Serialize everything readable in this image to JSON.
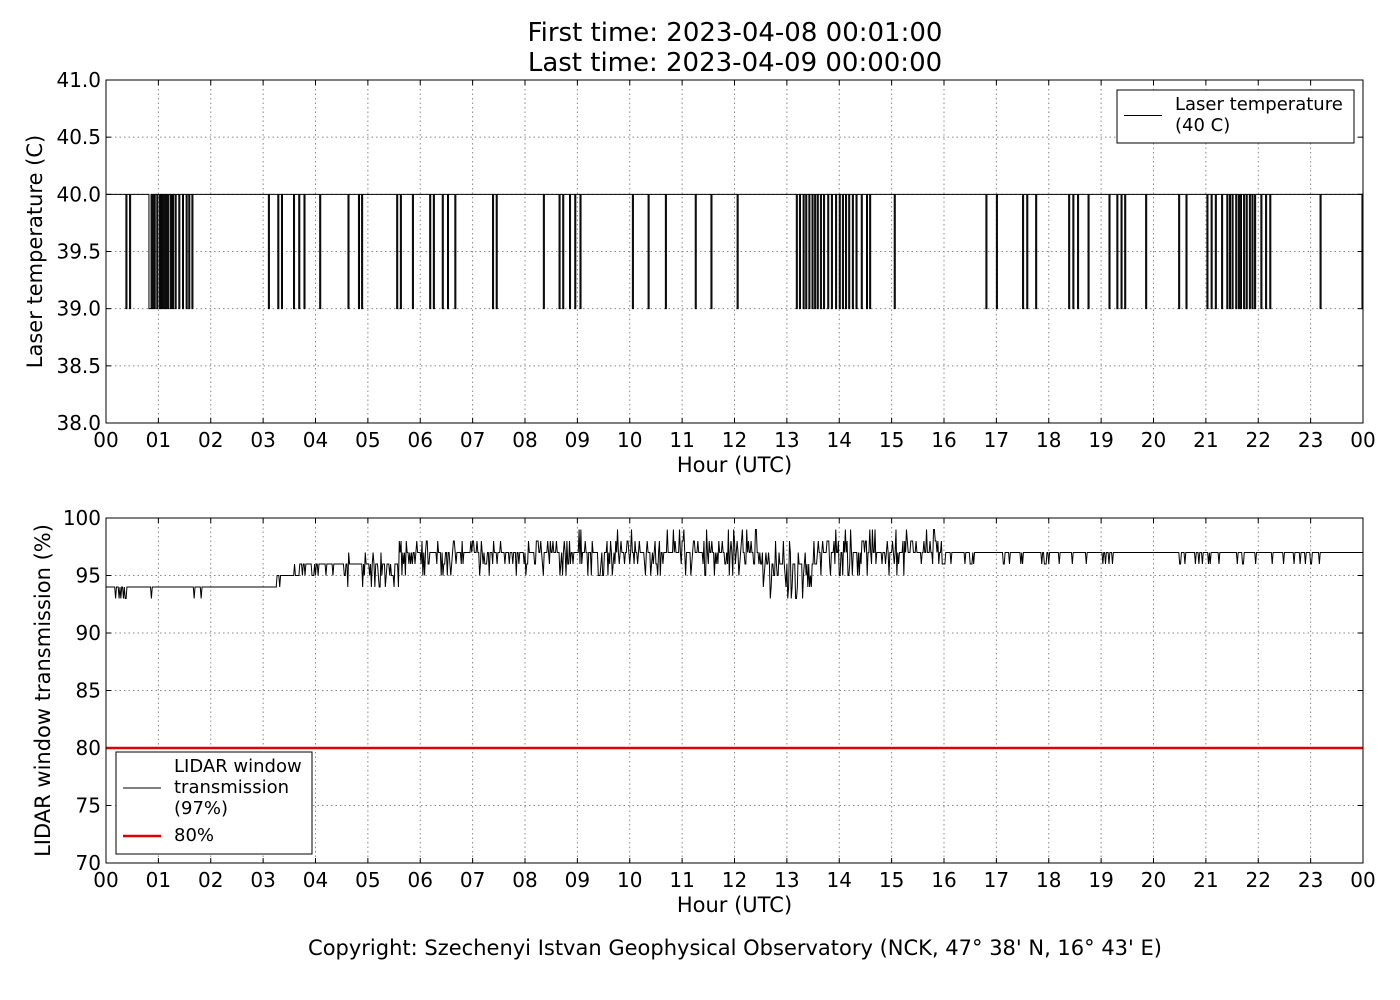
{
  "title": [
    "First time: 2023-04-08 00:01:00",
    "Last time: 2023-04-09 00:00:00"
  ],
  "copyright": "Copyright: Szechenyi Istvan Geophysical Observatory (NCK, 47° 38' N, 16° 43' E)",
  "colors": {
    "series": "#000000",
    "threshold": "#e00000",
    "grid": "#888888"
  },
  "chart_data": [
    {
      "type": "line",
      "xlabel": "Hour (UTC)",
      "ylabel": "Laser temperature (C)",
      "x_ticks": [
        "00",
        "01",
        "02",
        "03",
        "04",
        "05",
        "06",
        "07",
        "08",
        "09",
        "10",
        "11",
        "12",
        "13",
        "14",
        "15",
        "16",
        "17",
        "18",
        "19",
        "20",
        "21",
        "22",
        "23",
        "00"
      ],
      "y_ticks": [
        "38.0",
        "38.5",
        "39.0",
        "39.5",
        "40.0",
        "40.5",
        "41.0"
      ],
      "xlim": [
        0,
        24
      ],
      "ylim": [
        38.0,
        41.0
      ],
      "grid": true,
      "legend_position": "top-right",
      "series": [
        {
          "name": "Laser temperature (40 C)",
          "legend_lines": [
            "Laser temperature",
            "(40 C)"
          ],
          "color": "#000000",
          "baseline": 40.0,
          "low_value": 39.0,
          "dip_intervals_hours": [
            [
              0.38,
              0.4
            ],
            [
              0.45,
              0.47
            ],
            [
              0.82,
              0.86
            ],
            [
              0.88,
              0.9
            ],
            [
              0.92,
              0.94
            ],
            [
              0.97,
              0.99
            ],
            [
              1.02,
              1.04
            ],
            [
              1.06,
              1.08
            ],
            [
              1.1,
              1.12
            ],
            [
              1.14,
              1.16
            ],
            [
              1.18,
              1.2
            ],
            [
              1.23,
              1.25
            ],
            [
              1.27,
              1.29
            ],
            [
              1.32,
              1.34
            ],
            [
              1.39,
              1.41
            ],
            [
              1.46,
              1.48
            ],
            [
              1.53,
              1.55
            ],
            [
              1.58,
              1.6
            ],
            [
              1.64,
              1.66
            ],
            [
              3.1,
              3.12
            ],
            [
              3.28,
              3.3
            ],
            [
              3.35,
              3.37
            ],
            [
              3.58,
              3.6
            ],
            [
              3.68,
              3.7
            ],
            [
              3.78,
              3.8
            ],
            [
              4.08,
              4.1
            ],
            [
              4.62,
              4.64
            ],
            [
              4.82,
              4.84
            ],
            [
              4.88,
              4.9
            ],
            [
              5.55,
              5.57
            ],
            [
              5.62,
              5.64
            ],
            [
              5.85,
              5.87
            ],
            [
              6.18,
              6.2
            ],
            [
              6.25,
              6.27
            ],
            [
              6.42,
              6.44
            ],
            [
              6.52,
              6.54
            ],
            [
              6.66,
              6.68
            ],
            [
              7.38,
              7.4
            ],
            [
              7.45,
              7.47
            ],
            [
              8.35,
              8.37
            ],
            [
              8.65,
              8.67
            ],
            [
              8.72,
              8.74
            ],
            [
              8.85,
              8.87
            ],
            [
              8.95,
              8.97
            ],
            [
              9.05,
              9.07
            ],
            [
              10.05,
              10.07
            ],
            [
              10.35,
              10.37
            ],
            [
              10.68,
              10.7
            ],
            [
              11.25,
              11.27
            ],
            [
              11.55,
              11.57
            ],
            [
              12.05,
              12.07
            ],
            [
              13.18,
              13.2
            ],
            [
              13.24,
              13.26
            ],
            [
              13.31,
              13.33
            ],
            [
              13.36,
              13.38
            ],
            [
              13.42,
              13.44
            ],
            [
              13.48,
              13.5
            ],
            [
              13.53,
              13.55
            ],
            [
              13.58,
              13.6
            ],
            [
              13.64,
              13.66
            ],
            [
              13.7,
              13.72
            ],
            [
              13.78,
              13.8
            ],
            [
              13.85,
              13.87
            ],
            [
              13.93,
              13.95
            ],
            [
              14.0,
              14.02
            ],
            [
              14.06,
              14.08
            ],
            [
              14.12,
              14.14
            ],
            [
              14.18,
              14.2
            ],
            [
              14.25,
              14.27
            ],
            [
              14.32,
              14.34
            ],
            [
              14.42,
              14.44
            ],
            [
              14.52,
              14.54
            ],
            [
              14.58,
              14.6
            ],
            [
              15.05,
              15.07
            ],
            [
              16.8,
              16.82
            ],
            [
              17.0,
              17.02
            ],
            [
              17.5,
              17.52
            ],
            [
              17.58,
              17.6
            ],
            [
              17.75,
              17.77
            ],
            [
              18.38,
              18.4
            ],
            [
              18.46,
              18.48
            ],
            [
              18.55,
              18.57
            ],
            [
              18.75,
              18.77
            ],
            [
              19.15,
              19.17
            ],
            [
              19.3,
              19.32
            ],
            [
              19.38,
              19.4
            ],
            [
              19.45,
              19.47
            ],
            [
              19.85,
              19.87
            ],
            [
              20.48,
              20.5
            ],
            [
              20.62,
              20.64
            ],
            [
              21.02,
              21.04
            ],
            [
              21.1,
              21.12
            ],
            [
              21.18,
              21.2
            ],
            [
              21.3,
              21.32
            ],
            [
              21.4,
              21.42
            ],
            [
              21.45,
              21.47
            ],
            [
              21.5,
              21.52
            ],
            [
              21.57,
              21.59
            ],
            [
              21.62,
              21.64
            ],
            [
              21.66,
              21.68
            ],
            [
              21.72,
              21.74
            ],
            [
              21.77,
              21.79
            ],
            [
              21.83,
              21.85
            ],
            [
              21.88,
              21.9
            ],
            [
              21.93,
              21.95
            ],
            [
              22.05,
              22.07
            ],
            [
              22.14,
              22.16
            ],
            [
              22.22,
              22.24
            ],
            [
              23.18,
              23.2
            ],
            [
              23.98,
              24.0
            ]
          ]
        }
      ]
    },
    {
      "type": "line",
      "xlabel": "Hour (UTC)",
      "ylabel": "LIDAR window transmission (%)",
      "x_ticks": [
        "00",
        "01",
        "02",
        "03",
        "04",
        "05",
        "06",
        "07",
        "08",
        "09",
        "10",
        "11",
        "12",
        "13",
        "14",
        "15",
        "16",
        "17",
        "18",
        "19",
        "20",
        "21",
        "22",
        "23",
        "00"
      ],
      "y_ticks": [
        "70",
        "75",
        "80",
        "85",
        "90",
        "95",
        "100"
      ],
      "xlim": [
        0,
        24
      ],
      "ylim": [
        70,
        100
      ],
      "grid": true,
      "legend_position": "bottom-left",
      "series": [
        {
          "name": "LIDAR window transmission (97%)",
          "legend_lines": [
            "LIDAR window",
            "transmission",
            "(97%)"
          ],
          "color": "#000000",
          "segments": [
            {
              "from": 0.0,
              "to": 0.45,
              "base": 94,
              "lo": 93,
              "hi": 94,
              "activity": 0.45
            },
            {
              "from": 0.45,
              "to": 2.8,
              "base": 94,
              "lo": 93,
              "hi": 94,
              "activity": 0.02
            },
            {
              "from": 2.8,
              "to": 3.25,
              "base": 94,
              "lo": 94,
              "hi": 95,
              "activity": 0.05
            },
            {
              "from": 3.25,
              "to": 3.7,
              "base": 95,
              "lo": 93,
              "hi": 96,
              "activity": 0.15
            },
            {
              "from": 3.7,
              "to": 4.6,
              "base": 96,
              "lo": 95,
              "hi": 96,
              "activity": 0.35
            },
            {
              "from": 4.6,
              "to": 5.6,
              "base": 96,
              "lo": 94,
              "hi": 97,
              "activity": 0.45
            },
            {
              "from": 5.6,
              "to": 8.8,
              "base": 97,
              "lo": 95,
              "hi": 98,
              "activity": 0.6
            },
            {
              "from": 8.8,
              "to": 12.5,
              "base": 97,
              "lo": 95,
              "hi": 99,
              "activity": 0.65
            },
            {
              "from": 12.5,
              "to": 13.6,
              "base": 96,
              "lo": 93,
              "hi": 98,
              "activity": 0.7
            },
            {
              "from": 13.6,
              "to": 16.0,
              "base": 97,
              "lo": 95,
              "hi": 99,
              "activity": 0.65
            },
            {
              "from": 16.0,
              "to": 16.6,
              "base": 97,
              "lo": 96,
              "hi": 97,
              "activity": 0.45
            },
            {
              "from": 16.6,
              "to": 19.3,
              "base": 97,
              "lo": 96,
              "hi": 97,
              "activity": 0.15
            },
            {
              "from": 19.3,
              "to": 20.4,
              "base": 97,
              "lo": 96,
              "hi": 97,
              "activity": 0.02
            },
            {
              "from": 20.4,
              "to": 23.2,
              "base": 97,
              "lo": 96,
              "hi": 97,
              "activity": 0.22
            },
            {
              "from": 23.2,
              "to": 24.0,
              "base": 97,
              "lo": 97,
              "hi": 97,
              "activity": 0.0
            }
          ]
        },
        {
          "name": "80%",
          "legend_lines": [
            "80%"
          ],
          "color": "#e00000",
          "constant": 80
        }
      ]
    }
  ]
}
